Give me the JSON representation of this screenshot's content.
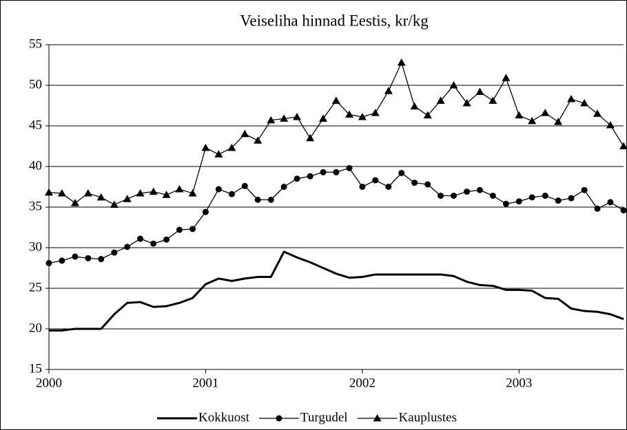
{
  "chart_data": {
    "type": "line",
    "title": "Veiseliha hinnad Eestis, kr/kg",
    "x": [
      2000,
      2000.083,
      2000.167,
      2000.25,
      2000.333,
      2000.417,
      2000.5,
      2000.583,
      2000.667,
      2000.75,
      2000.833,
      2000.917,
      2001,
      2001.083,
      2001.167,
      2001.25,
      2001.333,
      2001.417,
      2001.5,
      2001.583,
      2001.667,
      2001.75,
      2001.833,
      2001.917,
      2002,
      2002.083,
      2002.167,
      2002.25,
      2002.333,
      2002.417,
      2002.5,
      2002.583,
      2002.667,
      2002.75,
      2002.833,
      2002.917,
      2003,
      2003.083,
      2003.167,
      2003.25,
      2003.333,
      2003.417,
      2003.5,
      2003.583,
      2003.667
    ],
    "series": [
      {
        "name": "Kokkuost",
        "color": "#000000",
        "marker": "none",
        "values": [
          19.8,
          19.8,
          20,
          20,
          20,
          21.8,
          23.2,
          23.3,
          22.7,
          22.8,
          23.2,
          23.8,
          25.5,
          26.2,
          25.9,
          26.2,
          26.4,
          26.4,
          29.5,
          28.8,
          28.2,
          27.5,
          26.8,
          26.3,
          26.4,
          26.7,
          26.7,
          26.7,
          26.7,
          26.7,
          26.7,
          26.5,
          25.8,
          25.4,
          25.3,
          24.8,
          24.8,
          24.7,
          23.8,
          23.7,
          22.5,
          22.2,
          22.1,
          21.8,
          21.2
        ]
      },
      {
        "name": "Turgudel",
        "color": "#000000",
        "marker": "circle",
        "values": [
          28.1,
          28.4,
          28.9,
          28.7,
          28.6,
          29.4,
          30.1,
          31.1,
          30.5,
          31.0,
          32.2,
          32.3,
          34.4,
          37.2,
          36.6,
          37.6,
          35.9,
          35.9,
          37.5,
          38.5,
          38.8,
          39.3,
          39.3,
          39.8,
          37.5,
          38.3,
          37.5,
          39.2,
          38.0,
          37.8,
          36.4,
          36.4,
          36.9,
          37.1,
          36.4,
          35.4,
          35.7,
          36.2,
          36.4,
          35.8,
          36.1,
          37.1,
          34.8,
          35.6,
          34.6
        ]
      },
      {
        "name": "Kauplustes",
        "color": "#000000",
        "marker": "triangle",
        "values": [
          36.8,
          36.7,
          35.5,
          36.7,
          36.2,
          35.3,
          36.0,
          36.7,
          36.9,
          36.5,
          37.2,
          36.7,
          42.3,
          41.5,
          42.3,
          44.0,
          43.2,
          45.7,
          45.9,
          46.1,
          43.5,
          45.9,
          48.1,
          46.4,
          46.1,
          46.6,
          49.3,
          52.8,
          47.4,
          46.3,
          48.1,
          50.0,
          47.8,
          49.2,
          48.1,
          50.9,
          46.3,
          45.6,
          46.6,
          45.5,
          48.3,
          47.8,
          46.5,
          45.1,
          42.5
        ]
      }
    ],
    "xlim": [
      2000,
      2003.667
    ],
    "xticks": [
      2000,
      2001,
      2002,
      2003
    ],
    "ylim": [
      15,
      55
    ],
    "yticks": [
      15,
      20,
      25,
      30,
      35,
      40,
      45,
      50,
      55
    ],
    "grid": true,
    "legend": "bottom"
  }
}
